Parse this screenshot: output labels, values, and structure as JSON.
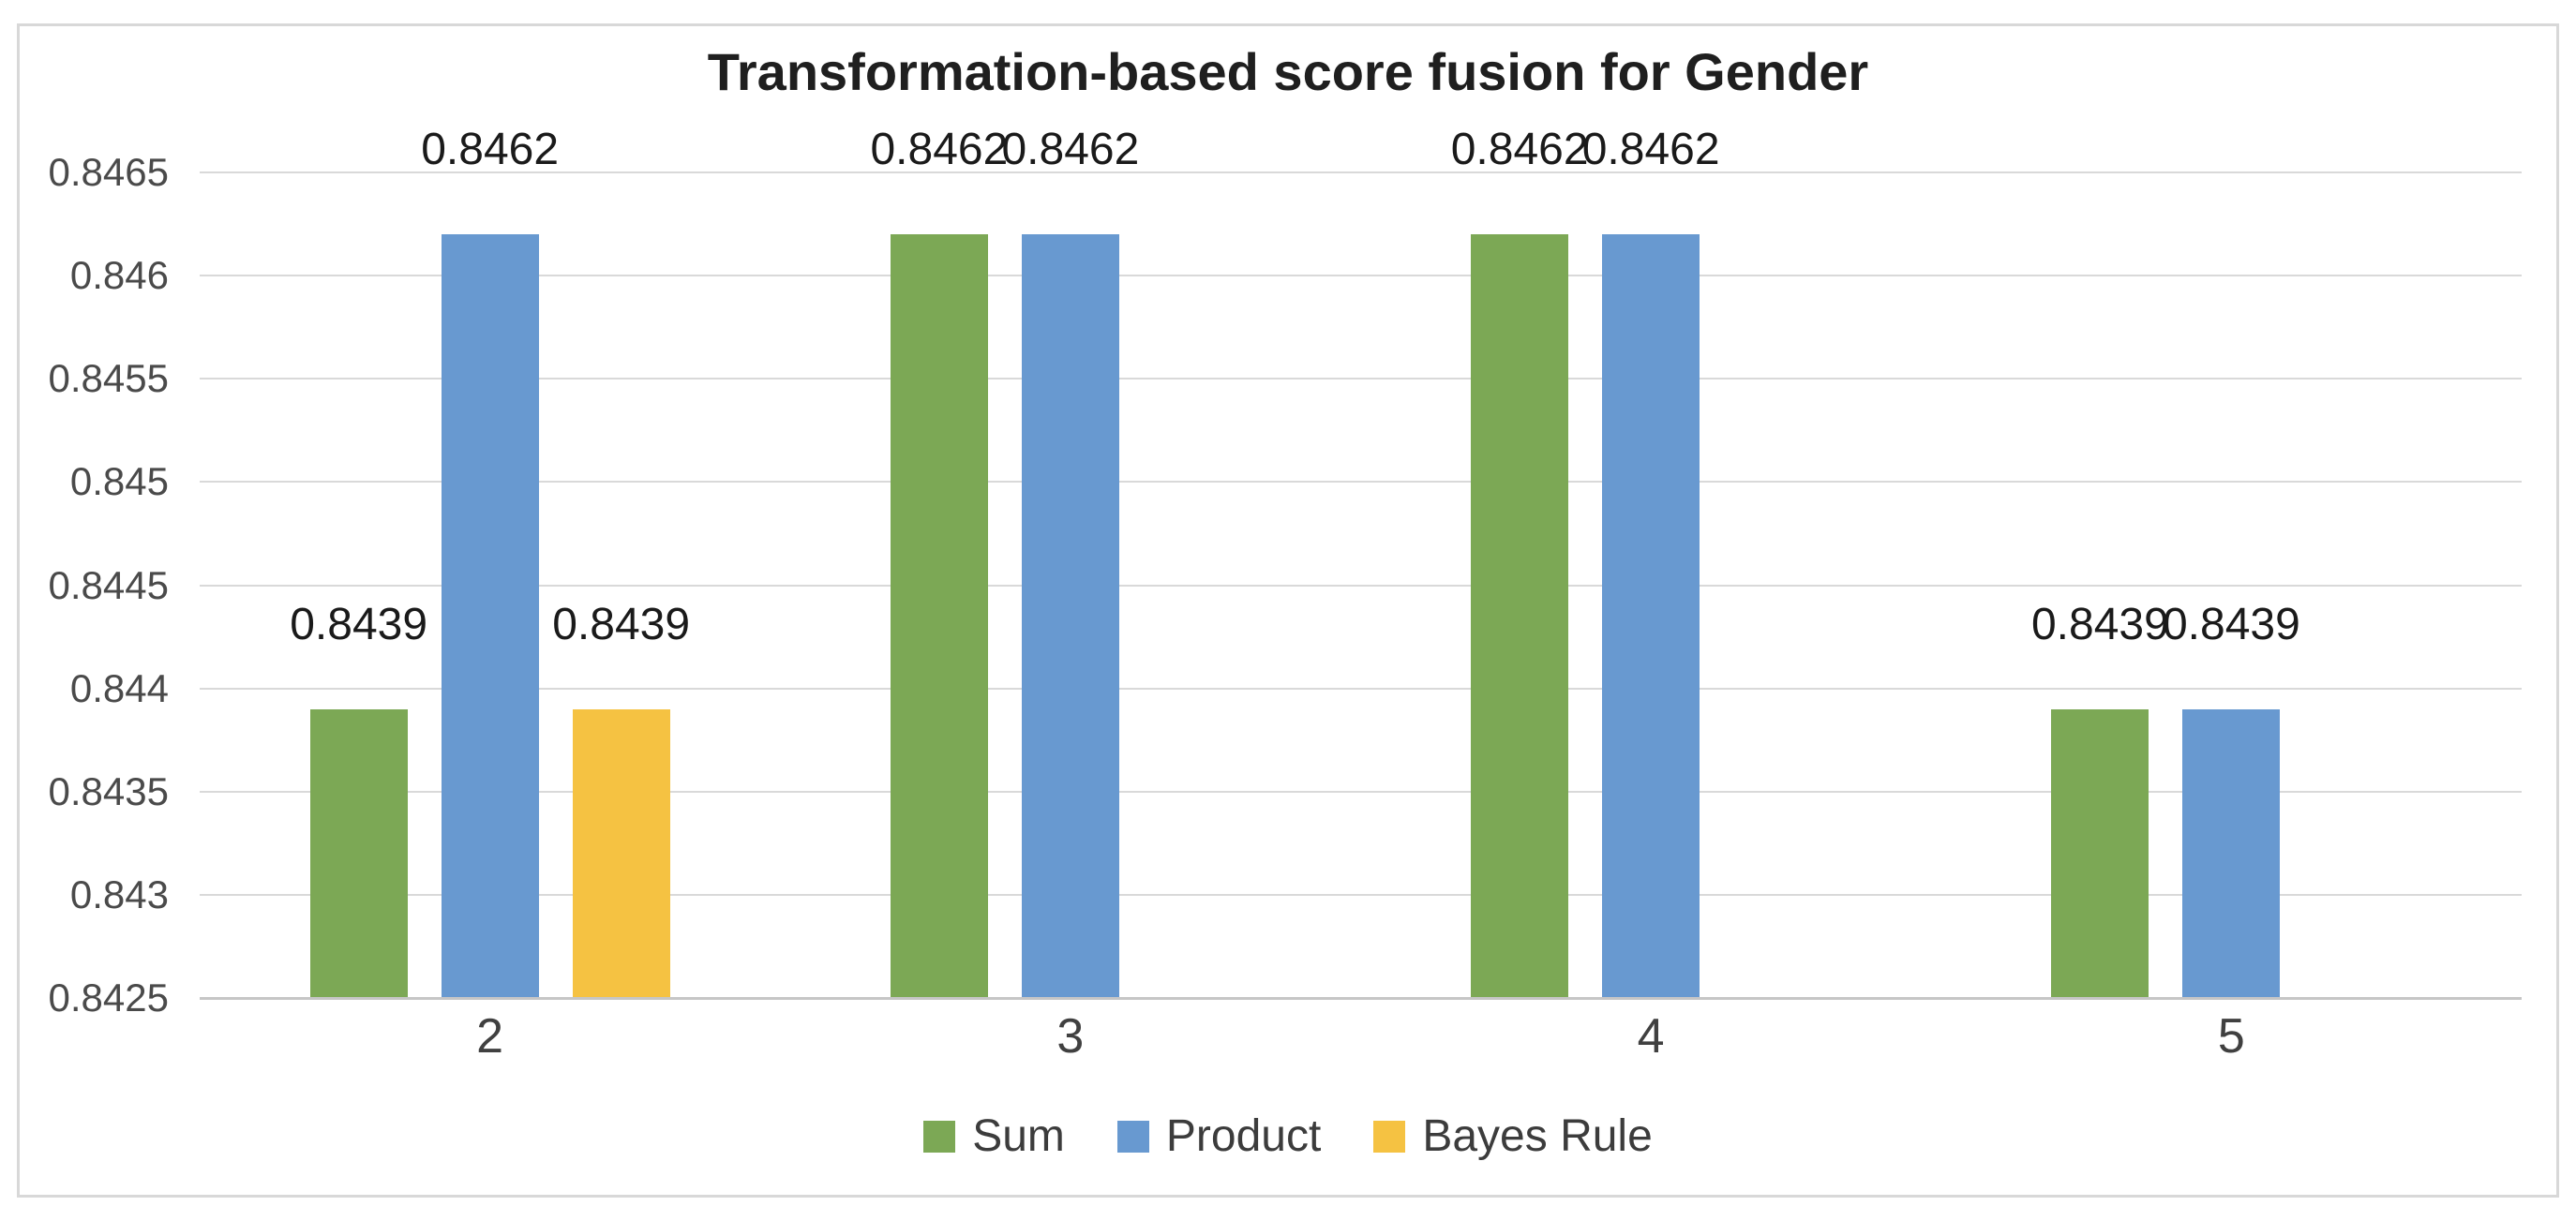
{
  "chart_data": {
    "type": "bar",
    "title": "Transformation-based score fusion for Gender",
    "categories": [
      "2",
      "3",
      "4",
      "5"
    ],
    "series": [
      {
        "name": "Sum",
        "color": "#7CA855",
        "values": [
          0.8439,
          0.8462,
          0.8462,
          0.8439
        ],
        "labels": [
          "0.8439",
          "0.8462",
          "0.8462",
          "0.8439"
        ]
      },
      {
        "name": "Product",
        "color": "#6899D0",
        "values": [
          0.8462,
          0.8462,
          0.8462,
          0.8439
        ],
        "labels": [
          "0.8462",
          "0.8462",
          "0.8462",
          "0.8439"
        ]
      },
      {
        "name": "Bayes Rule",
        "color": "#F5C242",
        "values": [
          0.8439,
          null,
          null,
          null
        ],
        "labels": [
          "0.8439",
          null,
          null,
          null
        ]
      }
    ],
    "y_axis": {
      "min": 0.8425,
      "max": 0.8465,
      "step": 0.0005,
      "tick_labels": [
        "0.8425",
        "0.843",
        "0.8435",
        "0.844",
        "0.8445",
        "0.845",
        "0.8455",
        "0.846",
        "0.8465"
      ]
    },
    "xlabel": "",
    "ylabel": "",
    "grid": true,
    "legend_position": "bottom",
    "frame_border_color": "#D8D8D8",
    "gridline_color": "#D9D9D9"
  }
}
